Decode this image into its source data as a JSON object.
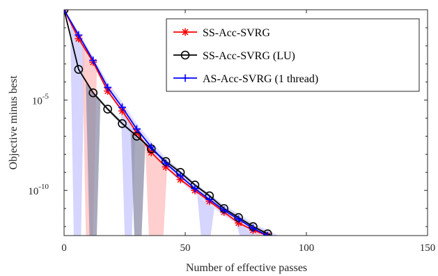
{
  "chart_data": {
    "type": "line",
    "xlabel": "Number of effective passes",
    "ylabel": "Objective minus best",
    "xlim": [
      0,
      150
    ],
    "ylim_log10": [
      -12.5,
      0
    ],
    "y_scale": "log",
    "grid": false,
    "legend_placement": "top-right",
    "x_ticks": [
      {
        "value": 0,
        "label": "0"
      },
      {
        "value": 50,
        "label": "50"
      },
      {
        "value": 100,
        "label": "100"
      },
      {
        "value": 150,
        "label": "150"
      }
    ],
    "y_ticks": [
      {
        "value": -5,
        "base": "10",
        "exp": "-5"
      },
      {
        "value": -10,
        "base": "10",
        "exp": "-10"
      }
    ],
    "series": [
      {
        "name": "SS-Acc-SVRG",
        "color": "#ff0000",
        "marker": "asterisk",
        "band_color": "#ffbdbd",
        "x": [
          0,
          6,
          12,
          18,
          24,
          30,
          36,
          42,
          48,
          54,
          60,
          66,
          72,
          78,
          84,
          90,
          96
        ],
        "log10_y": [
          0,
          -1.6,
          -2.9,
          -4.5,
          -5.6,
          -6.8,
          -7.9,
          -8.7,
          -9.4,
          -10.0,
          -10.6,
          -11.2,
          -11.8,
          -12.2,
          -12.5,
          -12.9,
          -13.2
        ],
        "band_low": [
          0,
          -1.7,
          -3.0,
          -4.6,
          -5.7,
          -6.9,
          -8.0,
          -8.8,
          -9.5,
          -10.1,
          -10.7,
          -11.3,
          -11.9,
          -12.3,
          -12.6,
          -13.0,
          -13.3
        ],
        "band_high": [
          0,
          -1.5,
          -2.8,
          -4.4,
          -5.5,
          -6.7,
          -7.8,
          -8.6,
          -9.3,
          -9.9,
          -10.5,
          -11.1,
          -11.7,
          -12.1,
          -12.4,
          -12.8,
          -13.1
        ]
      },
      {
        "name": "SS-Acc-SVRG (LU)",
        "color": "#000000",
        "marker": "circle",
        "band_color": "#8e8ea8",
        "x": [
          0,
          6,
          12,
          18,
          24,
          30,
          36,
          42,
          48,
          54,
          60,
          66,
          72,
          78,
          84,
          90,
          96
        ],
        "log10_y": [
          0,
          -3.3,
          -4.6,
          -5.5,
          -6.3,
          -7.0,
          -7.7,
          -8.4,
          -9.0,
          -9.7,
          -10.3,
          -11.0,
          -11.5,
          -12.0,
          -12.4,
          -12.8,
          -13.2
        ],
        "band_low": [
          0,
          -3.4,
          -4.7,
          -5.6,
          -6.4,
          -7.1,
          -7.8,
          -8.5,
          -9.1,
          -9.8,
          -10.4,
          -11.1,
          -11.6,
          -12.1,
          -12.5,
          -12.9,
          -13.3
        ],
        "band_high": [
          0,
          -3.2,
          -4.5,
          -5.4,
          -6.2,
          -6.9,
          -7.6,
          -8.3,
          -8.9,
          -9.6,
          -10.2,
          -10.9,
          -11.4,
          -11.9,
          -12.3,
          -12.7,
          -13.1
        ]
      },
      {
        "name": "AS-Acc-SVRG (1 thread)",
        "color": "#0000ff",
        "marker": "plus",
        "band_color": "#c7c7ff",
        "x": [
          0,
          6,
          12,
          18,
          24,
          30,
          36,
          42,
          48,
          54,
          60,
          66,
          72,
          78,
          84,
          90,
          96
        ],
        "log10_y": [
          0,
          -1.4,
          -2.8,
          -4.3,
          -5.4,
          -6.6,
          -7.6,
          -8.5,
          -9.2,
          -9.9,
          -10.5,
          -11.1,
          -11.6,
          -12.1,
          -12.5,
          -12.9,
          -13.2
        ],
        "band_low": [
          0,
          -1.6,
          -3.0,
          -4.6,
          -5.7,
          -6.9,
          -7.9,
          -8.8,
          -9.5,
          -10.2,
          -10.8,
          -11.4,
          -11.9,
          -12.4,
          -12.8,
          -13.2,
          -13.4
        ],
        "band_high": [
          0,
          -1.2,
          -2.6,
          -4.0,
          -5.1,
          -6.3,
          -7.3,
          -8.2,
          -8.9,
          -9.6,
          -10.2,
          -10.8,
          -11.3,
          -11.8,
          -12.2,
          -12.6,
          -13.0
        ]
      }
    ],
    "band_spikes": [
      {
        "series": "AS-Acc-SVRG (1 thread)",
        "x": 5.5,
        "width": 3
      },
      {
        "series": "SS-Acc-SVRG",
        "x": 10.5,
        "width": 3
      },
      {
        "series": "SS-Acc-SVRG (LU)",
        "x": 12,
        "width": 3
      },
      {
        "series": "AS-Acc-SVRG (1 thread)",
        "x": 26.5,
        "width": 3
      },
      {
        "series": "SS-Acc-SVRG (LU)",
        "x": 30.5,
        "width": 3
      },
      {
        "series": "SS-Acc-SVRG",
        "x": 38,
        "width": 6
      },
      {
        "series": "AS-Acc-SVRG (1 thread)",
        "x": 58.5,
        "width": 4
      },
      {
        "series": "AS-Acc-SVRG (1 thread)",
        "x": 75,
        "width": 5
      },
      {
        "series": "SS-Acc-SVRG",
        "x": 81,
        "width": 3
      }
    ]
  }
}
